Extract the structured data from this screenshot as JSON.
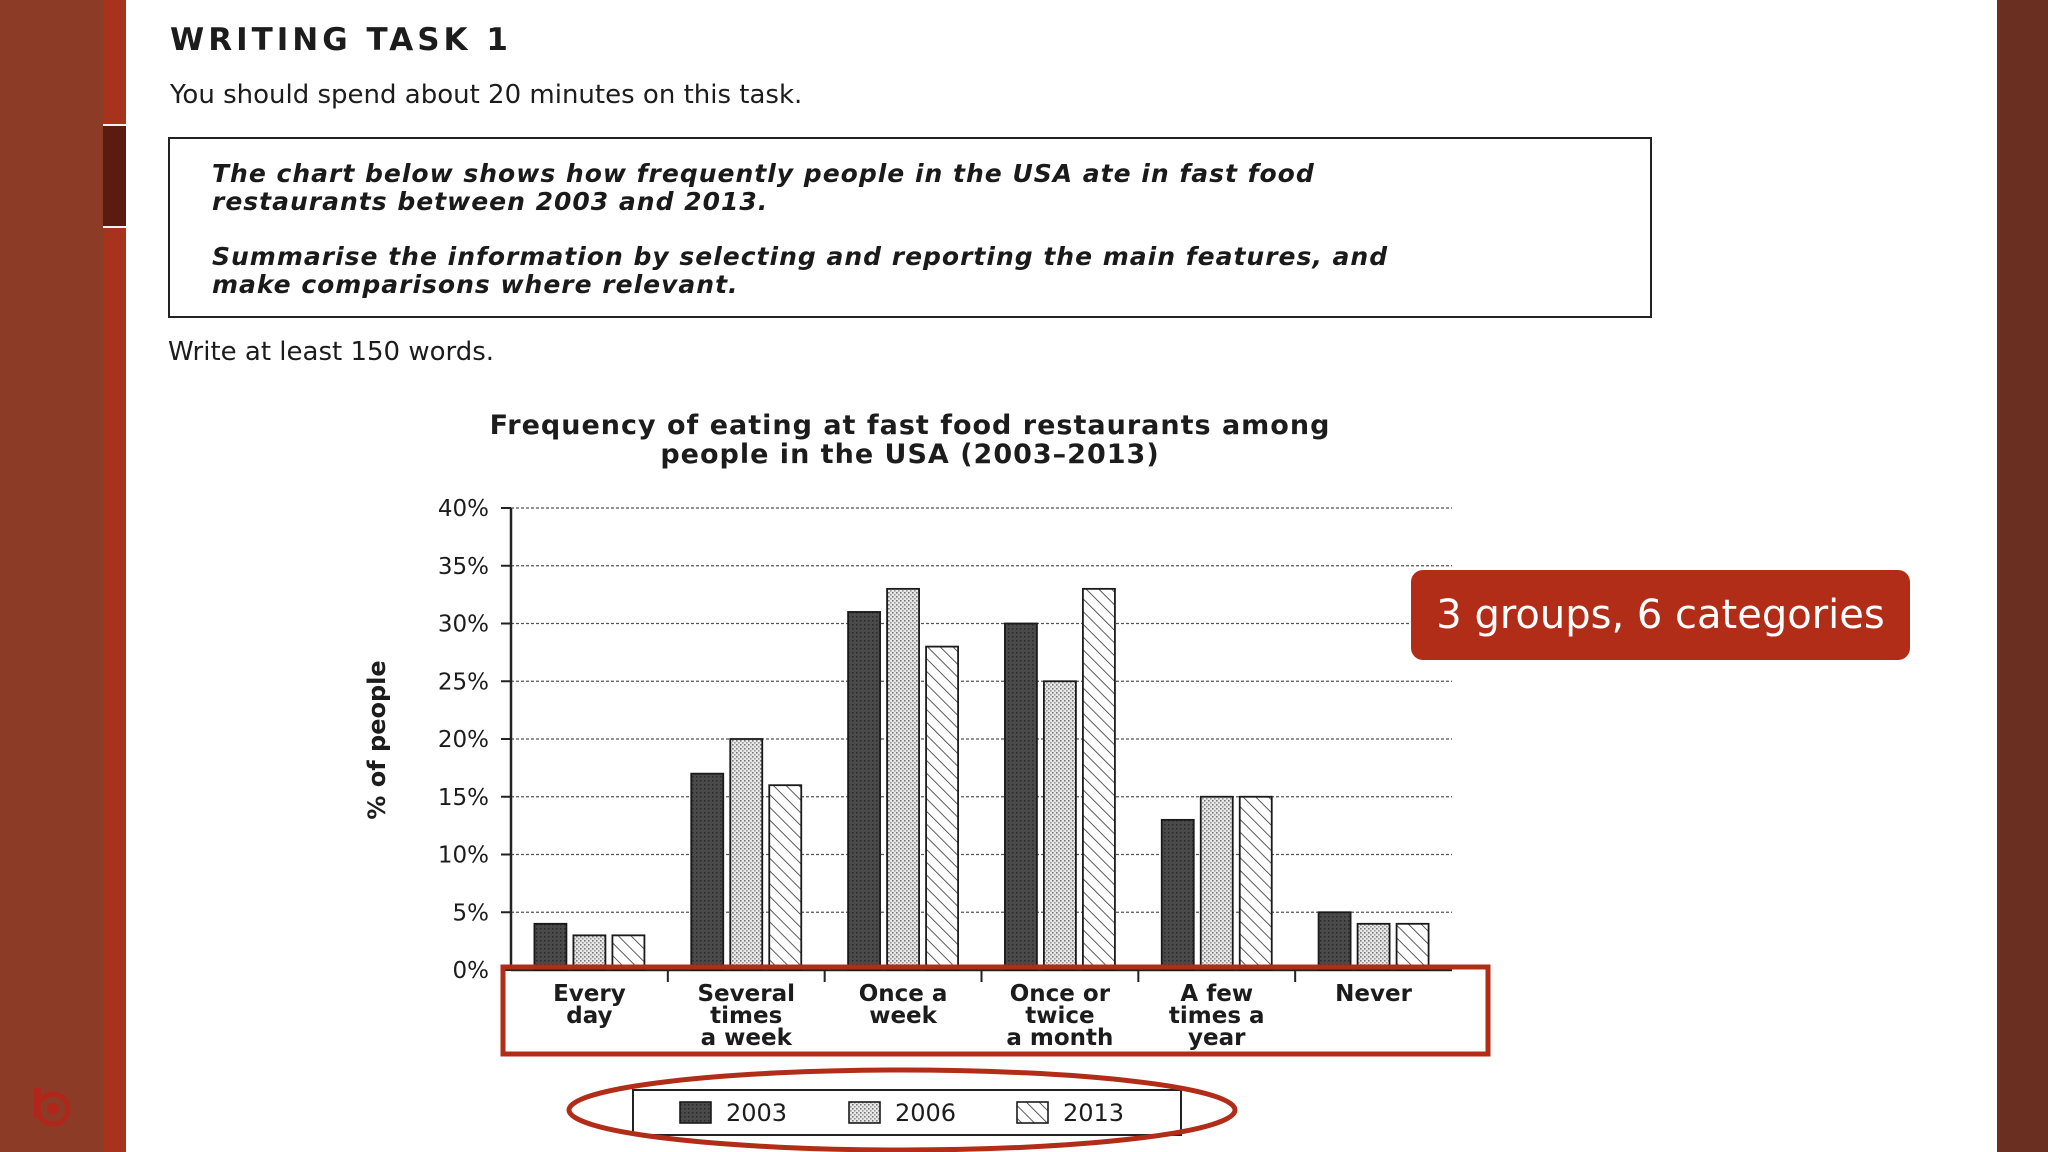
{
  "task": {
    "heading": "WRITING TASK 1",
    "time_instruction": "You should spend about 20 minutes on this task.",
    "prompt_lines": [
      "The chart below shows how frequently people in the USA ate in fast food",
      "restaurants between 2003 and 2013.",
      "Summarise the information by selecting and reporting the main features, and",
      "make comparisons where relevant."
    ],
    "word_count": "Write at least 150 words."
  },
  "chart_data": {
    "type": "bar",
    "title": "Frequency of eating at fast food restaurants among people in the USA (2003–2013)",
    "title_lines": [
      "Frequency of eating at fast food restaurants among",
      "people in the USA (2003–2013)"
    ],
    "ylabel": "% of people",
    "xlabel": "",
    "ylim": [
      0,
      40
    ],
    "yticks": [
      "0%",
      "5%",
      "10%",
      "15%",
      "20%",
      "25%",
      "30%",
      "35%",
      "40%"
    ],
    "categories": [
      "Every day",
      "Several times a week",
      "Once a week",
      "Once or twice a month",
      "A few times a year",
      "Never"
    ],
    "category_label_lines": [
      [
        "Every",
        "day"
      ],
      [
        "Several",
        "times",
        "a week"
      ],
      [
        "Once a",
        "week"
      ],
      [
        "Once or",
        "twice",
        "a month"
      ],
      [
        "A few",
        "times a",
        "year"
      ],
      [
        "Never"
      ]
    ],
    "series": [
      {
        "name": "2003",
        "values": [
          4,
          17,
          31,
          30,
          13,
          5
        ],
        "pattern": "solid-dark"
      },
      {
        "name": "2006",
        "values": [
          3,
          20,
          33,
          25,
          15,
          4
        ],
        "pattern": "dotted"
      },
      {
        "name": "2013",
        "values": [
          3,
          16,
          28,
          33,
          15,
          4
        ],
        "pattern": "hatched"
      }
    ],
    "grid": true,
    "legend_position": "bottom"
  },
  "annotation": {
    "callout": "3 groups, 6 categories",
    "colors": {
      "accent": "#b12d18",
      "frame": "#8c3b27",
      "stripe": "#a8331d"
    }
  }
}
